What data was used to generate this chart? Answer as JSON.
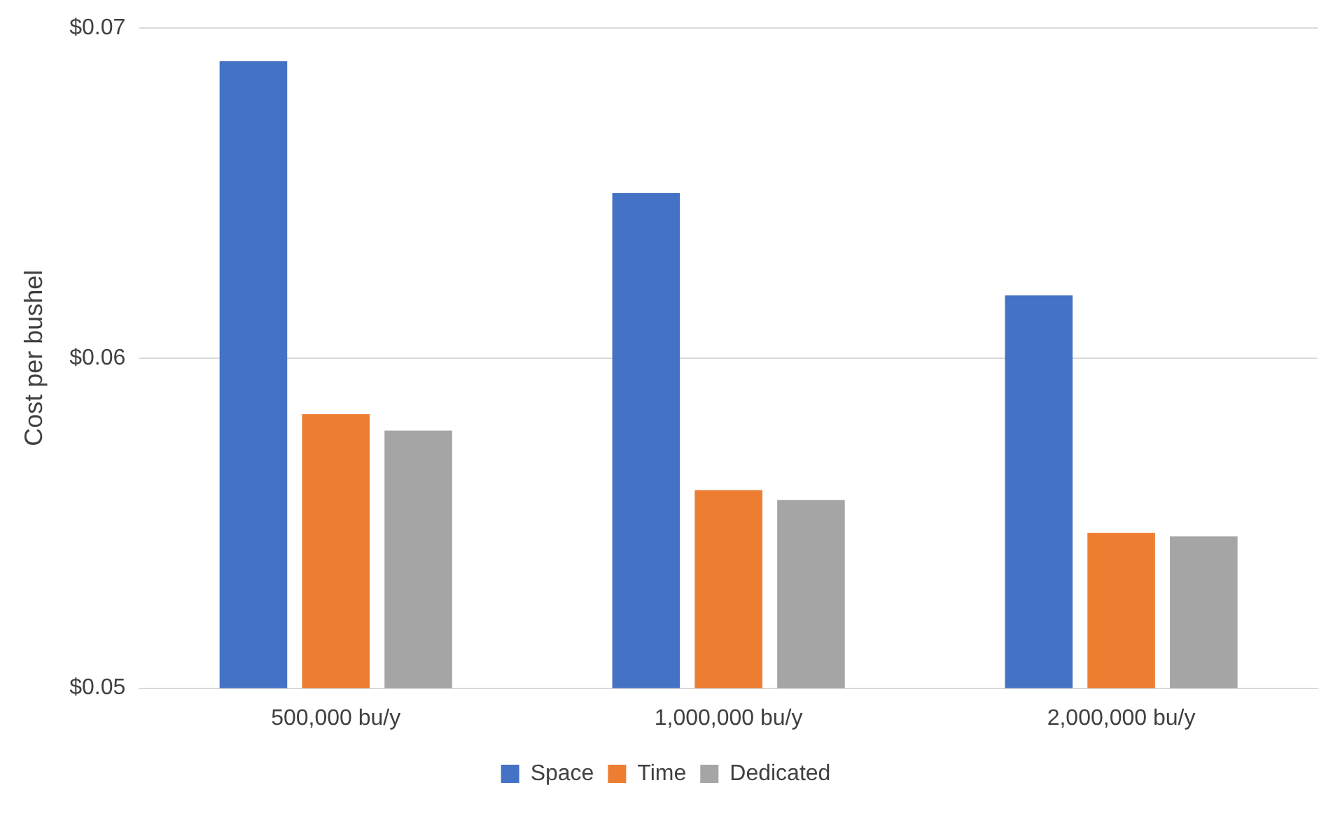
{
  "chart_data": {
    "type": "bar",
    "ylabel": "Cost per bushel",
    "categories": [
      "500,000 bu/y",
      "1,000,000 bu/y",
      "2,000,000 bu/y"
    ],
    "series": [
      {
        "name": "Space",
        "color": "#4472c4",
        "values": [
          0.069,
          0.065,
          0.0619
        ]
      },
      {
        "name": "Time",
        "color": "#ed7d31",
        "values": [
          0.0583,
          0.056,
          0.0547
        ]
      },
      {
        "name": "Dedicated",
        "color": "#a5a5a5",
        "values": [
          0.0578,
          0.0557,
          0.0546
        ]
      }
    ],
    "ylim": [
      0.05,
      0.07
    ],
    "yticks": [
      {
        "value": 0.05,
        "label": "$0.05"
      },
      {
        "value": 0.06,
        "label": "$0.06"
      },
      {
        "value": 0.07,
        "label": "$0.07"
      }
    ],
    "grid": "y",
    "legend": "bottom"
  }
}
